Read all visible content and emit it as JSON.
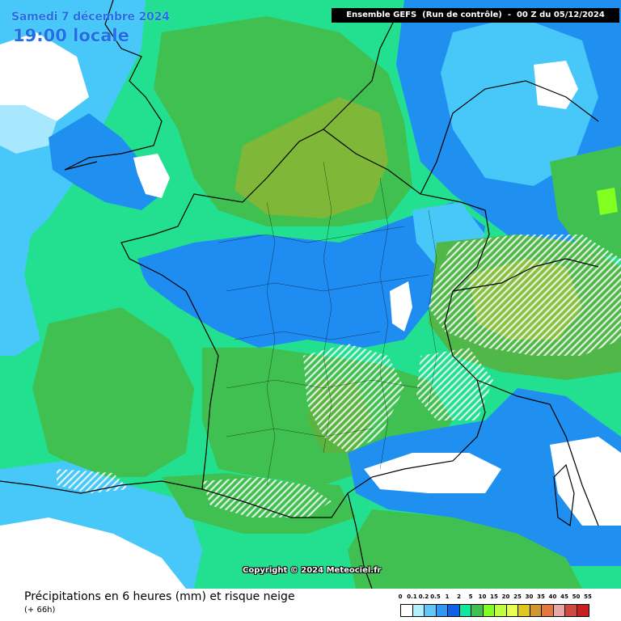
{
  "header": {
    "date": "Samedi 7 décembre 2024",
    "local_time": "19:00 locale",
    "run_info": "Ensemble GEFS  (Run de contrôle)  -  00 Z du 05/12/2024"
  },
  "map": {
    "copyright": "Copyright © 2024 Meteociel.fr",
    "colors": {
      "none": "#ffffff",
      "very_light": "#a8e8ff",
      "light_blue": "#48c8f8",
      "blue": "#2090f0",
      "teal": "#10e8a0",
      "green": "#40c050",
      "olive": "#80b838",
      "lime": "#80ff20",
      "snow_hatch": "#ffffff",
      "borders": "#000000"
    }
  },
  "footer": {
    "title": "Précipitations en 6 heures (mm) et risque neige",
    "subtitle": "(+ 66h)"
  },
  "legend": {
    "labels": [
      "0",
      "0.1",
      "0.2",
      "0.5",
      "1",
      "2",
      "5",
      "10",
      "15",
      "20",
      "25",
      "30",
      "35",
      "40",
      "45",
      "50",
      "55"
    ],
    "colors": [
      "#ffffff",
      "#b0f0ff",
      "#60c8f8",
      "#3098f0",
      "#1060e8",
      "#10e8a0",
      "#40c050",
      "#80ff20",
      "#c0ff40",
      "#e8ff50",
      "#e0c820",
      "#d09830",
      "#e07840",
      "#e8a8a8",
      "#d04840",
      "#c82020"
    ]
  }
}
